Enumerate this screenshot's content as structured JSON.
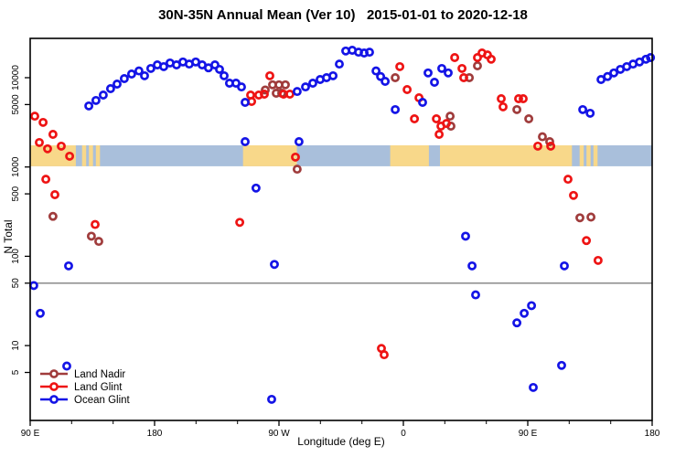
{
  "page": {
    "background": "#ffffff"
  },
  "chart_data": {
    "type": "scatter",
    "title": "30N-35N Annual Mean (Ver 10)   2015-01-01 to 2020-12-18",
    "xlabel": "Longitude (deg E)",
    "ylabel": "N Total",
    "x_axis": {
      "range_deg": [
        90,
        540
      ],
      "major_ticks_deg": [
        90,
        180,
        270,
        360,
        450,
        540
      ],
      "major_tick_labels": [
        "90 E",
        "180",
        "90 W",
        "0",
        "90 E",
        "180"
      ],
      "minor_tick_step_deg": 30
    },
    "y_axis": {
      "scale": "log",
      "range": [
        1.5,
        27000
      ],
      "tick_values": [
        10000,
        5000,
        1000,
        500,
        100,
        50,
        10,
        5
      ],
      "tick_labels": [
        "10000",
        "5000",
        "1000",
        "500",
        "100",
        "50",
        "10",
        "5"
      ]
    },
    "reference_line": {
      "y_value": 50,
      "color": "#7f7f7f"
    },
    "map_band": {
      "n_range": [
        1020,
        1750
      ],
      "ocean_color": "#a9bfdb",
      "land_color": "#f8d88a",
      "land_segments_deg": [
        [
          90,
          123
        ],
        [
          127.5,
          130.5
        ],
        [
          132.5,
          135.5
        ],
        [
          137.5,
          140.5
        ],
        [
          244,
          283
        ],
        [
          350.5,
          378.5
        ],
        [
          386.5,
          482
        ],
        [
          487.5,
          490.5
        ],
        [
          492.5,
          495.5
        ],
        [
          497.5,
          500.5
        ]
      ]
    },
    "legend": {
      "position": "bottom-left",
      "items": [
        {
          "label": "Land Nadir",
          "color": "#a03c3c"
        },
        {
          "label": "Land Glint",
          "color": "#ee1414"
        },
        {
          "label": "Ocean Glint",
          "color": "#1414e6"
        }
      ]
    },
    "series": [
      {
        "name": "Land Nadir",
        "color": "#a03c3c",
        "points": [
          [
            106.5,
            280
          ],
          [
            134.3,
            168
          ],
          [
            139.6,
            147
          ],
          [
            260.1,
            7280
          ],
          [
            265.4,
            8320
          ],
          [
            270.0,
            8320
          ],
          [
            274.6,
            8320
          ],
          [
            268.0,
            6700
          ],
          [
            272.0,
            6700
          ],
          [
            283.2,
            945
          ],
          [
            354.1,
            10000
          ],
          [
            407.7,
            10000
          ],
          [
            413.6,
            13600
          ],
          [
            393.8,
            3710
          ],
          [
            394.4,
            2870
          ],
          [
            442.1,
            4390
          ],
          [
            450.7,
            3460
          ],
          [
            460.6,
            2180
          ],
          [
            465.9,
            1920
          ],
          [
            487.7,
            270
          ],
          [
            495.7,
            275
          ]
        ]
      },
      {
        "name": "Land Glint",
        "color": "#ee1414",
        "points": [
          [
            93.3,
            3710
          ],
          [
            99.3,
            3160
          ],
          [
            96.6,
            1880
          ],
          [
            102.6,
            1600
          ],
          [
            106.5,
            2320
          ],
          [
            112.5,
            1710
          ],
          [
            118.5,
            1320
          ],
          [
            101.3,
            730
          ],
          [
            107.9,
            490
          ],
          [
            137.0,
            227
          ],
          [
            241.6,
            240
          ],
          [
            249.5,
            6390
          ],
          [
            255.4,
            6390
          ],
          [
            259.4,
            6550
          ],
          [
            250.2,
            5420
          ],
          [
            263.4,
            10500
          ],
          [
            273.3,
            6550
          ],
          [
            277.9,
            6550
          ],
          [
            281.9,
            1290
          ],
          [
            344.1,
            9.3
          ],
          [
            346.1,
            7.9
          ],
          [
            357.4,
            13300
          ],
          [
            362.7,
            7360
          ],
          [
            368.0,
            3460
          ],
          [
            371.3,
            5950
          ],
          [
            383.9,
            3460
          ],
          [
            387.2,
            2870
          ],
          [
            385.9,
            2320
          ],
          [
            391.1,
            3070
          ],
          [
            397.1,
            16800
          ],
          [
            402.4,
            12700
          ],
          [
            403.7,
            10000
          ],
          [
            413.6,
            16800
          ],
          [
            416.9,
            18900
          ],
          [
            420.9,
            18000
          ],
          [
            423.5,
            16100
          ],
          [
            430.8,
            5810
          ],
          [
            432.1,
            4710
          ],
          [
            443.4,
            5810
          ],
          [
            446.7,
            5810
          ],
          [
            457.3,
            1710
          ],
          [
            466.6,
            1710
          ],
          [
            479.1,
            730
          ],
          [
            483.1,
            480
          ],
          [
            492.4,
            150
          ],
          [
            500.9,
            90
          ]
        ]
      },
      {
        "name": "Ocean Glint",
        "color": "#1414e6",
        "points": [
          [
            92.6,
            47
          ],
          [
            97.3,
            23
          ],
          [
            116.5,
            5.9
          ],
          [
            117.8,
            78
          ],
          [
            132.4,
            4830
          ],
          [
            137.6,
            5560
          ],
          [
            142.9,
            6390
          ],
          [
            148.2,
            7530
          ],
          [
            152.9,
            8470
          ],
          [
            158.1,
            9770
          ],
          [
            163.4,
            11000
          ],
          [
            168.7,
            11900
          ],
          [
            172.7,
            10500
          ],
          [
            177.3,
            12700
          ],
          [
            182.0,
            13900
          ],
          [
            186.6,
            13300
          ],
          [
            191.2,
            14600
          ],
          [
            195.9,
            13900
          ],
          [
            200.5,
            15000
          ],
          [
            205.1,
            14200
          ],
          [
            209.8,
            15000
          ],
          [
            214.4,
            13900
          ],
          [
            219.0,
            12900
          ],
          [
            223.7,
            13900
          ],
          [
            227.0,
            12400
          ],
          [
            230.3,
            10500
          ],
          [
            234.2,
            8680
          ],
          [
            238.9,
            8680
          ],
          [
            242.9,
            7890
          ],
          [
            245.5,
            5290
          ],
          [
            245.5,
            1920
          ],
          [
            253.4,
            580
          ],
          [
            266.7,
            81
          ],
          [
            264.7,
            2.5
          ],
          [
            284.5,
            1920
          ],
          [
            283.2,
            7000
          ],
          [
            289.2,
            7890
          ],
          [
            294.5,
            8680
          ],
          [
            299.8,
            9550
          ],
          [
            304.4,
            10000
          ],
          [
            309.1,
            10500
          ],
          [
            313.7,
            14200
          ],
          [
            318.3,
            19900
          ],
          [
            323.0,
            20300
          ],
          [
            327.6,
            19300
          ],
          [
            331.6,
            18900
          ],
          [
            335.5,
            19300
          ],
          [
            340.2,
            11900
          ],
          [
            343.5,
            10300
          ],
          [
            346.8,
            9100
          ],
          [
            354.1,
            4390
          ],
          [
            373.9,
            5290
          ],
          [
            377.9,
            11300
          ],
          [
            382.5,
            8890
          ],
          [
            387.8,
            12700
          ],
          [
            392.4,
            11300
          ],
          [
            405.0,
            168
          ],
          [
            409.7,
            78
          ],
          [
            412.3,
            37
          ],
          [
            442.1,
            18
          ],
          [
            447.4,
            23
          ],
          [
            452.7,
            28
          ],
          [
            454.0,
            3.4
          ],
          [
            474.5,
            6.0
          ],
          [
            476.5,
            78
          ],
          [
            489.8,
            4390
          ],
          [
            495.1,
            4000
          ],
          [
            503.0,
            9550
          ],
          [
            507.7,
            10300
          ],
          [
            512.3,
            11300
          ],
          [
            517.0,
            12400
          ],
          [
            521.6,
            13300
          ],
          [
            526.2,
            14200
          ],
          [
            530.9,
            15000
          ],
          [
            535.5,
            16100
          ],
          [
            538.8,
            16800
          ]
        ]
      }
    ]
  }
}
